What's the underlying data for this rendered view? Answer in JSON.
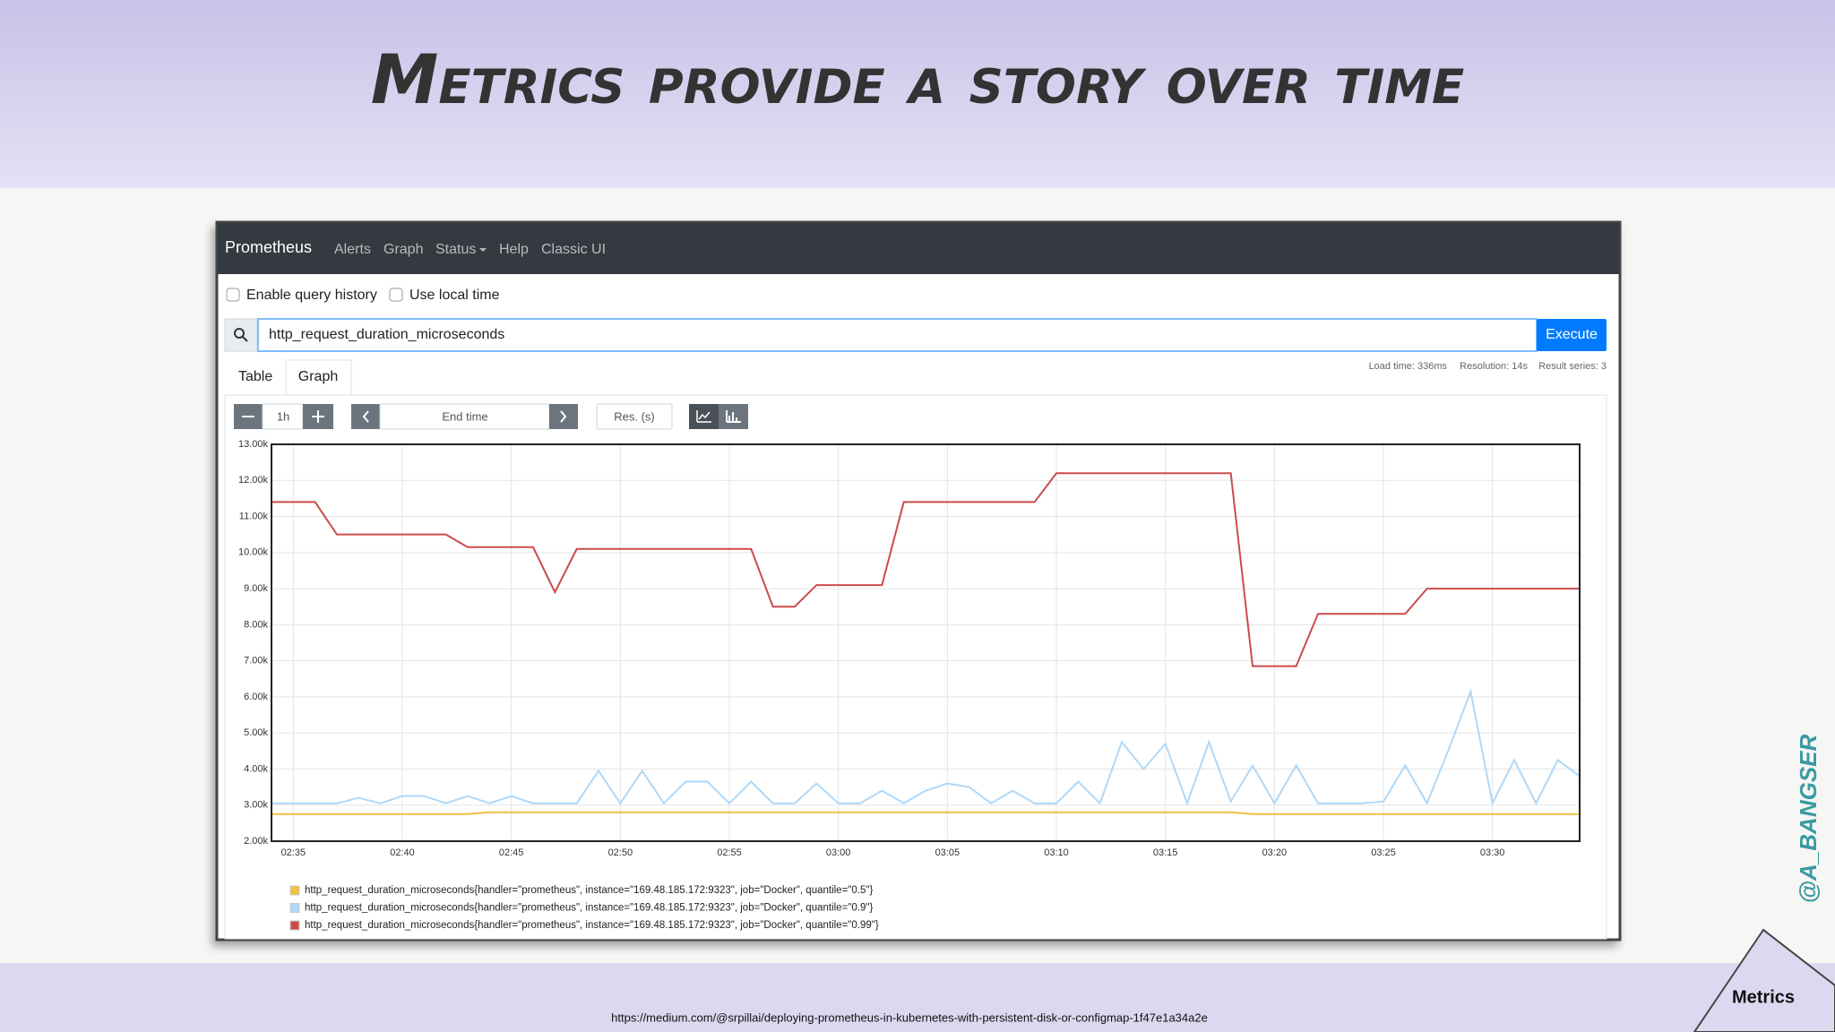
{
  "slide": {
    "title": "Metrics provide a story over time",
    "url": "https://medium.com/@srpillai/deploying-prometheus-in-kubernetes-with-persistent-disk-or-configmap-1f47e1a34a2e",
    "handle": "@A_BANGSER",
    "badge": "Metrics"
  },
  "navbar": {
    "brand": "Prometheus",
    "items": [
      "Alerts",
      "Graph",
      "Status",
      "Help",
      "Classic UI"
    ]
  },
  "options": [
    "Enable query history",
    "Use local time"
  ],
  "query": {
    "expression": "http_request_duration_microseconds",
    "button": "Execute"
  },
  "stats": [
    "Load time: 336ms",
    "Resolution: 14s",
    "Result series: 3"
  ],
  "tabs": [
    "Table",
    "Graph"
  ],
  "controls": {
    "range": "1h",
    "end_time": "End time",
    "resolution": "Res. (s)"
  },
  "chart_data": {
    "type": "line",
    "grid": true,
    "x": [
      "02:34",
      "02:35",
      "02:36",
      "02:37",
      "02:38",
      "02:39",
      "02:40",
      "02:41",
      "02:42",
      "02:43",
      "02:44",
      "02:45",
      "02:46",
      "02:47",
      "02:48",
      "02:49",
      "02:50",
      "02:51",
      "02:52",
      "02:53",
      "02:54",
      "02:55",
      "02:56",
      "02:57",
      "02:58",
      "02:59",
      "03:00",
      "03:01",
      "03:02",
      "03:03",
      "03:04",
      "03:05",
      "03:06",
      "03:07",
      "03:08",
      "03:09",
      "03:10",
      "03:11",
      "03:12",
      "03:13",
      "03:14",
      "03:15",
      "03:16",
      "03:17",
      "03:18",
      "03:19",
      "03:20",
      "03:21",
      "03:22",
      "03:23",
      "03:24",
      "03:25",
      "03:26",
      "03:27",
      "03:28",
      "03:29",
      "03:30",
      "03:31",
      "03:32",
      "03:33",
      "03:34"
    ],
    "xlim": [
      "02:34",
      "03:34"
    ],
    "xticks": [
      "02:35",
      "02:40",
      "02:45",
      "02:50",
      "02:55",
      "03:00",
      "03:05",
      "03:10",
      "03:15",
      "03:20",
      "03:25",
      "03:30"
    ],
    "ylim": [
      2000,
      13000
    ],
    "yticks": [
      {
        "value": 2000,
        "label": "2.00k"
      },
      {
        "value": 3000,
        "label": "3.00k"
      },
      {
        "value": 4000,
        "label": "4.00k"
      },
      {
        "value": 5000,
        "label": "5.00k"
      },
      {
        "value": 6000,
        "label": "6.00k"
      },
      {
        "value": 7000,
        "label": "7.00k"
      },
      {
        "value": 8000,
        "label": "8.00k"
      },
      {
        "value": 9000,
        "label": "9.00k"
      },
      {
        "value": 10000,
        "label": "10.00k"
      },
      {
        "value": 11000,
        "label": "11.00k"
      },
      {
        "value": 12000,
        "label": "12.00k"
      },
      {
        "value": 13000,
        "label": "13.00k"
      }
    ],
    "series": [
      {
        "name": "http_request_duration_microseconds{handler=\"prometheus\", instance=\"169.48.185.172:9323\", job=\"Docker\", quantile=\"0.5\"}",
        "color": "#edc240",
        "values": [
          2750,
          2750,
          2750,
          2750,
          2750,
          2750,
          2750,
          2750,
          2750,
          2750,
          2800,
          2800,
          2800,
          2800,
          2800,
          2800,
          2800,
          2800,
          2800,
          2800,
          2800,
          2800,
          2800,
          2800,
          2800,
          2800,
          2800,
          2800,
          2800,
          2800,
          2800,
          2800,
          2800,
          2800,
          2800,
          2800,
          2800,
          2800,
          2800,
          2800,
          2800,
          2800,
          2800,
          2800,
          2800,
          2750,
          2750,
          2750,
          2750,
          2750,
          2750,
          2750,
          2750,
          2750,
          2750,
          2750,
          2750,
          2750,
          2750,
          2750,
          2750
        ]
      },
      {
        "name": "http_request_duration_microseconds{handler=\"prometheus\", instance=\"169.48.185.172:9323\", job=\"Docker\", quantile=\"0.9\"}",
        "color": "#afd8f8",
        "values": [
          3050,
          3050,
          3050,
          3050,
          3200,
          3050,
          3250,
          3250,
          3050,
          3250,
          3050,
          3250,
          3050,
          3050,
          3050,
          3950,
          3050,
          3950,
          3050,
          3650,
          3650,
          3050,
          3650,
          3050,
          3050,
          3600,
          3050,
          3050,
          3400,
          3050,
          3400,
          3600,
          3500,
          3050,
          3400,
          3050,
          3050,
          3650,
          3050,
          4750,
          4000,
          4700,
          3050,
          4750,
          3100,
          4100,
          3050,
          4100,
          3050,
          3050,
          3050,
          3100,
          4100,
          3050,
          4550,
          6150,
          3050,
          4250,
          3050,
          4250,
          3800
        ]
      },
      {
        "name": "http_request_duration_microseconds{handler=\"prometheus\", instance=\"169.48.185.172:9323\", job=\"Docker\", quantile=\"0.99\"}",
        "color": "#cb4b4b",
        "values": [
          11400,
          11400,
          11400,
          10500,
          10500,
          10500,
          10500,
          10500,
          10500,
          10150,
          10150,
          10150,
          10150,
          8900,
          10100,
          10100,
          10100,
          10100,
          10100,
          10100,
          10100,
          10100,
          10100,
          8500,
          8500,
          9100,
          9100,
          9100,
          9100,
          11400,
          11400,
          11400,
          11400,
          11400,
          11400,
          11400,
          12200,
          12200,
          12200,
          12200,
          12200,
          12200,
          12200,
          12200,
          12200,
          6850,
          6850,
          6850,
          8300,
          8300,
          8300,
          8300,
          8300,
          9000,
          9000,
          9000,
          9000,
          9000,
          9000,
          9000,
          9000
        ]
      }
    ]
  }
}
